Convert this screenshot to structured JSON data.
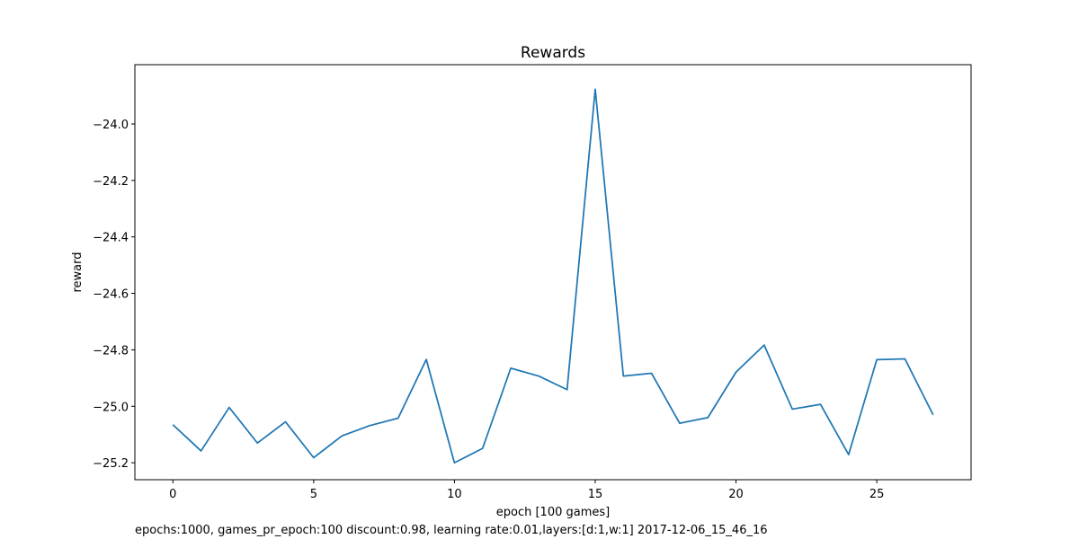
{
  "chart_data": {
    "type": "line",
    "title": "Rewards",
    "xlabel": "epoch [100 games]",
    "ylabel": "reward",
    "caption": "epochs:1000, games_pr_epoch:100 discount:0.98, learning rate:0.01,layers:[d:1,w:1] 2017-12-06_15_46_16",
    "xlim": [
      -1.35,
      28.35
    ],
    "ylim": [
      -25.26,
      -23.79
    ],
    "xticks": [
      0,
      5,
      10,
      15,
      20,
      25
    ],
    "xtick_labels": [
      "0",
      "5",
      "10",
      "15",
      "20",
      "25"
    ],
    "yticks": [
      -24.0,
      -24.2,
      -24.4,
      -24.6,
      -24.8,
      -25.0,
      -25.2
    ],
    "ytick_labels": [
      "−24.0",
      "−24.2",
      "−24.4",
      "−24.6",
      "−24.8",
      "−25.0",
      "−25.2"
    ],
    "grid": false,
    "color": "#1f77b4",
    "x": [
      0,
      1,
      2,
      3,
      4,
      5,
      6,
      7,
      8,
      9,
      10,
      11,
      12,
      13,
      14,
      15,
      16,
      17,
      18,
      19,
      20,
      21,
      22,
      23,
      24,
      25,
      26,
      27
    ],
    "values": [
      -25.065,
      -25.158,
      -25.004,
      -25.13,
      -25.055,
      -25.182,
      -25.105,
      -25.068,
      -25.042,
      -24.834,
      -25.2,
      -25.149,
      -24.865,
      -24.893,
      -24.941,
      -23.877,
      -24.893,
      -24.883,
      -25.06,
      -25.04,
      -24.879,
      -24.783,
      -25.01,
      -24.993,
      -25.171,
      -24.835,
      -24.832,
      -25.03
    ]
  }
}
